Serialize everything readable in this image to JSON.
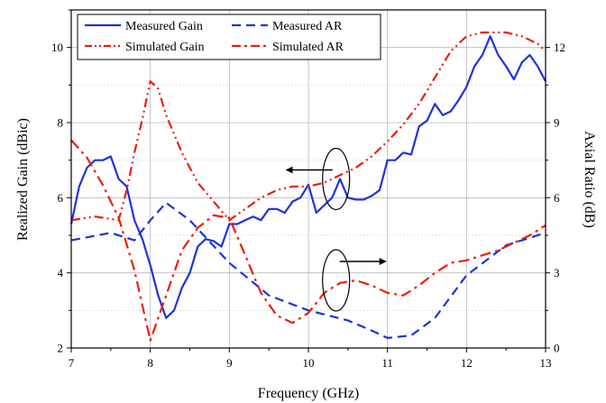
{
  "chart_data": {
    "type": "line",
    "xlabel": "Frequency (GHz)",
    "ylabel_left": "Realized Gain (dBic)",
    "ylabel_right": "Axial Ratio (dB)",
    "xlim": [
      7,
      13
    ],
    "ylim_left": [
      2,
      11
    ],
    "ylim_right": [
      0,
      13.5
    ],
    "x_ticks": [
      "7",
      "8",
      "9",
      "10",
      "11",
      "12",
      "13"
    ],
    "y_left_ticks": [
      "2",
      "4",
      "6",
      "8",
      "10"
    ],
    "y_right_ticks": [
      "0",
      "3",
      "6",
      "9",
      "12"
    ],
    "grid": true,
    "legend_position": "top",
    "colors": {
      "blue": "#1f33d6",
      "red": "#e8200c"
    },
    "series": [
      {
        "name": "Measured Gain",
        "axis": "left",
        "color": "#1f33d6",
        "style": "solid",
        "x": [
          7.0,
          7.1,
          7.2,
          7.3,
          7.4,
          7.5,
          7.6,
          7.7,
          7.8,
          7.9,
          8.0,
          8.1,
          8.2,
          8.3,
          8.4,
          8.5,
          8.6,
          8.7,
          8.8,
          8.9,
          9.0,
          9.1,
          9.2,
          9.3,
          9.4,
          9.5,
          9.6,
          9.7,
          9.8,
          9.9,
          10.0,
          10.1,
          10.2,
          10.3,
          10.4,
          10.5,
          10.6,
          10.7,
          10.8,
          10.9,
          11.0,
          11.1,
          11.2,
          11.3,
          11.4,
          11.5,
          11.6,
          11.7,
          11.8,
          11.9,
          12.0,
          12.1,
          12.2,
          12.3,
          12.4,
          12.5,
          12.6,
          12.7,
          12.8,
          12.9,
          13.0
        ],
        "values": [
          5.3,
          6.3,
          6.8,
          7.0,
          7.0,
          7.1,
          6.5,
          6.3,
          5.4,
          4.9,
          4.2,
          3.4,
          2.8,
          3.0,
          3.6,
          4.0,
          4.7,
          4.9,
          4.85,
          4.7,
          5.3,
          5.3,
          5.4,
          5.5,
          5.4,
          5.7,
          5.7,
          5.6,
          5.9,
          6.0,
          6.35,
          5.6,
          5.8,
          6.0,
          6.5,
          6.0,
          5.95,
          5.95,
          6.05,
          6.2,
          7.0,
          7.0,
          7.2,
          7.15,
          7.9,
          8.05,
          8.5,
          8.2,
          8.3,
          8.6,
          8.95,
          9.5,
          9.8,
          10.3,
          9.8,
          9.5,
          9.15,
          9.6,
          9.8,
          9.5,
          9.1
        ]
      },
      {
        "name": "Measured AR",
        "axis": "right",
        "color": "#1f33d6",
        "style": "dashed",
        "x": [
          7.0,
          7.5,
          7.8,
          8.0,
          8.2,
          8.5,
          9.0,
          9.5,
          10.0,
          10.5,
          10.8,
          11.0,
          11.3,
          11.6,
          12.0,
          12.5,
          13.0
        ],
        "values": [
          4.3,
          4.6,
          4.3,
          5.1,
          5.8,
          5.1,
          3.4,
          2.1,
          1.5,
          1.1,
          0.7,
          0.4,
          0.5,
          1.2,
          2.9,
          4.1,
          4.6
        ]
      },
      {
        "name": "Simulated Gain",
        "axis": "left",
        "color": "#e8200c",
        "style": "dashdotdot",
        "x": [
          7.0,
          7.3,
          7.6,
          7.7,
          7.8,
          7.9,
          8.0,
          8.1,
          8.2,
          8.4,
          8.6,
          8.8,
          9.0,
          9.2,
          9.4,
          9.6,
          9.8,
          10.0,
          10.2,
          10.4,
          10.6,
          10.8,
          11.0,
          11.2,
          11.4,
          11.6,
          11.8,
          12.0,
          12.2,
          12.5,
          12.7,
          12.9,
          13.0
        ],
        "values": [
          5.4,
          5.5,
          5.4,
          6.2,
          7.2,
          8.1,
          9.1,
          8.9,
          8.2,
          7.2,
          6.4,
          5.9,
          5.4,
          5.7,
          6.0,
          6.2,
          6.3,
          6.3,
          6.4,
          6.6,
          6.8,
          7.1,
          7.5,
          7.95,
          8.5,
          9.2,
          9.9,
          10.3,
          10.4,
          10.4,
          10.3,
          10.1,
          9.9
        ]
      },
      {
        "name": "Simulated AR",
        "axis": "right",
        "color": "#e8200c",
        "style": "dashdot",
        "x": [
          7.0,
          7.2,
          7.4,
          7.6,
          7.8,
          8.0,
          8.2,
          8.4,
          8.6,
          8.8,
          9.0,
          9.2,
          9.4,
          9.6,
          9.8,
          10.0,
          10.2,
          10.4,
          10.6,
          10.8,
          11.0,
          11.2,
          11.4,
          11.6,
          11.8,
          12.0,
          12.2,
          12.4,
          12.6,
          12.8,
          13.0
        ],
        "values": [
          8.3,
          7.6,
          6.5,
          5.2,
          3.1,
          0.3,
          2.1,
          3.9,
          4.8,
          5.3,
          5.2,
          3.7,
          2.2,
          1.3,
          1.0,
          1.4,
          2.2,
          2.6,
          2.7,
          2.5,
          2.2,
          2.1,
          2.5,
          3.0,
          3.4,
          3.5,
          3.7,
          3.9,
          4.2,
          4.5,
          4.9
        ]
      }
    ],
    "annotations": [
      {
        "shape": "ellipse",
        "around": "Measured Gain",
        "x": 10.35,
        "y_left": 6.5,
        "arrow": "left"
      },
      {
        "shape": "ellipse",
        "around": "Measured AR",
        "x": 10.35,
        "y_right": 2.7,
        "arrow": "right"
      }
    ]
  }
}
